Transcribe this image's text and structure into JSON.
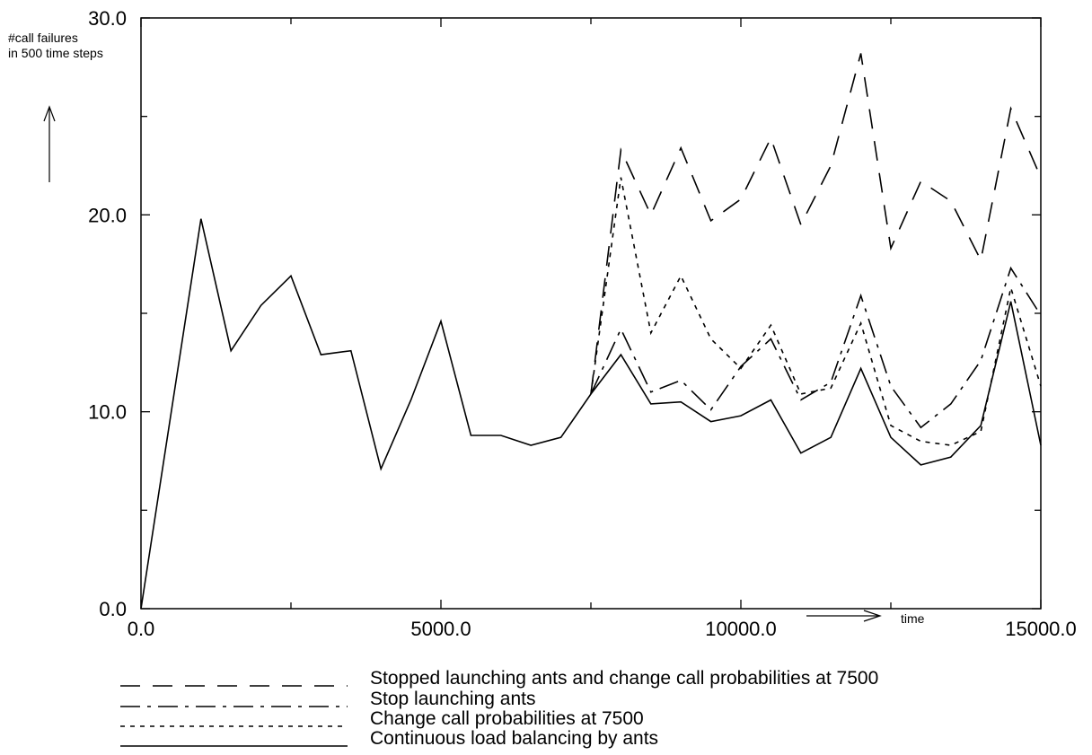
{
  "chart_data": {
    "type": "line",
    "title": "",
    "ylabel": "#call failures\nin 500 time steps",
    "ylabel_lines": [
      "#call failures",
      "in 500 time steps"
    ],
    "xlabel": "time",
    "xlim": [
      0,
      15000
    ],
    "ylim": [
      0,
      30
    ],
    "x_ticks": [
      0,
      5000,
      10000,
      15000
    ],
    "x_tick_labels": [
      "0.0",
      "5000.0",
      "10000.0",
      "15000.0"
    ],
    "y_ticks": [
      0,
      10,
      20,
      30
    ],
    "y_tick_labels": [
      "0.0",
      "10.0",
      "20.0",
      "30.0"
    ],
    "grid": false,
    "legend_position": "bottom",
    "series": [
      {
        "name": "Stopped launching ants and change call probabilities at 7500",
        "style": "dashed",
        "x": [
          7500,
          8000,
          8500,
          9000,
          9500,
          10000,
          10500,
          11000,
          11500,
          12000,
          12500,
          13000,
          13500,
          14000,
          14500,
          15000
        ],
        "values": [
          10.9,
          23.3,
          20.0,
          23.4,
          19.7,
          20.8,
          23.9,
          19.5,
          22.5,
          28.2,
          18.3,
          21.7,
          20.7,
          17.7,
          25.4,
          21.9
        ]
      },
      {
        "name": "Stop launching ants",
        "style": "dash-dot",
        "x": [
          7500,
          8000,
          8500,
          9000,
          9500,
          10000,
          10500,
          11000,
          11500,
          12000,
          12500,
          13000,
          13500,
          14000,
          14500,
          15000
        ],
        "values": [
          10.9,
          14.2,
          11.0,
          11.6,
          10.1,
          12.3,
          13.7,
          10.6,
          11.5,
          15.9,
          11.3,
          9.2,
          10.4,
          12.6,
          17.3,
          14.9
        ]
      },
      {
        "name": "Change call probabilities at 7500",
        "style": "dotted",
        "x": [
          7500,
          8000,
          8500,
          9000,
          9500,
          10000,
          10500,
          11000,
          11500,
          12000,
          12500,
          13000,
          13500,
          14000,
          14500,
          15000
        ],
        "values": [
          10.9,
          21.9,
          14.0,
          16.9,
          13.7,
          12.2,
          14.4,
          10.9,
          11.2,
          14.5,
          9.3,
          8.5,
          8.3,
          9.0,
          16.3,
          11.3
        ]
      },
      {
        "name": "Continuous load balancing by ants",
        "style": "solid",
        "x": [
          0,
          1000,
          1500,
          2000,
          2500,
          3000,
          3500,
          4000,
          4500,
          5000,
          5500,
          6000,
          6500,
          7000,
          7500,
          8000,
          8500,
          9000,
          9500,
          10000,
          10500,
          11000,
          11500,
          12000,
          12500,
          13000,
          13500,
          14000,
          14500,
          15000
        ],
        "values": [
          0.0,
          19.8,
          13.1,
          15.4,
          16.9,
          12.9,
          13.1,
          7.1,
          10.6,
          14.6,
          8.8,
          8.8,
          8.3,
          8.7,
          10.9,
          12.9,
          10.4,
          10.5,
          9.5,
          9.8,
          10.6,
          7.9,
          8.7,
          12.2,
          8.7,
          7.3,
          7.7,
          9.3,
          15.6,
          8.3
        ]
      }
    ]
  }
}
